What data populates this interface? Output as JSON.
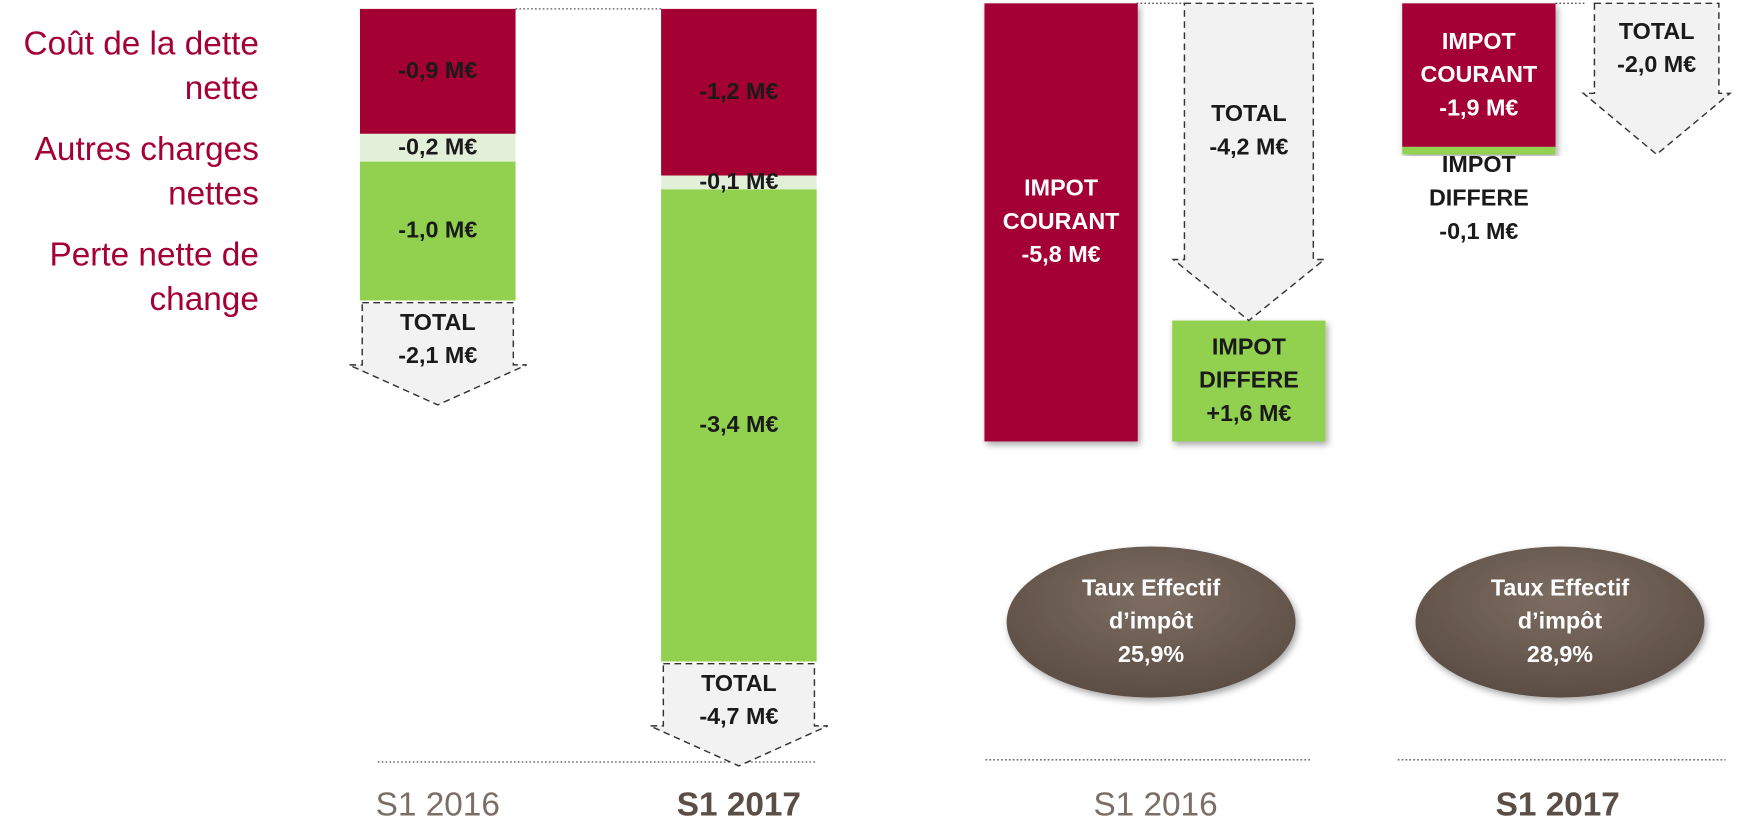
{
  "chart_data": [
    {
      "type": "stacked-bar",
      "categories": [
        "S1 2016",
        "S1 2017"
      ],
      "category_bold": [
        false,
        true
      ],
      "series": [
        {
          "name": "Coût de la dette nette",
          "color": "#a50034",
          "values": [
            -0.9,
            -1.2
          ],
          "value_labels": [
            "-0,9 M€",
            "-1,2 M€"
          ]
        },
        {
          "name": "Autres charges nettes",
          "color": "#e2f0d9",
          "values": [
            -0.2,
            -0.1
          ],
          "value_labels": [
            "-0,2 M€",
            "-0,1 M€"
          ]
        },
        {
          "name": "Perte nette de change",
          "color": "#92d050",
          "values": [
            -1.0,
            -3.4
          ],
          "value_labels": [
            "-1,0 M€",
            "-3,4 M€"
          ]
        }
      ],
      "total_label": "TOTAL",
      "totals": [
        -2.1,
        -4.7
      ],
      "total_value_labels": [
        "-2,1 M€",
        "-4,7 M€"
      ]
    },
    {
      "type": "waterfall",
      "categories": [
        "S1 2016",
        "S1 2017"
      ],
      "category_bold": [
        false,
        true
      ],
      "series": [
        {
          "name": "IMPOT COURANT",
          "color": "#a50034",
          "values": [
            -5.8,
            -1.9
          ],
          "value_labels": [
            "-5,8 M€",
            "-1,9 M€"
          ]
        },
        {
          "name": "IMPOT DIFFERE",
          "color": "#92d050",
          "values": [
            1.6,
            -0.1
          ],
          "value_labels": [
            "+1,6 M€",
            "-0,1 M€"
          ]
        }
      ],
      "total_label": "TOTAL",
      "totals": [
        -4.2,
        -2.0
      ],
      "total_value_labels": [
        "-4,2 M€",
        "-2,0 M€"
      ],
      "rate_label": "Taux Effectif d’impôt",
      "rates": [
        25.9,
        28.9
      ],
      "rate_value_labels": [
        "25,9%",
        "28,9%"
      ]
    }
  ]
}
